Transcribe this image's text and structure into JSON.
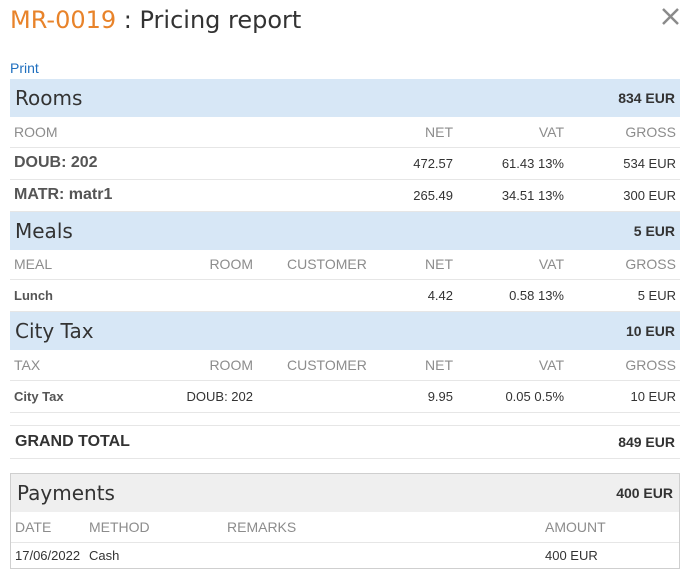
{
  "header": {
    "code": "MR-0019",
    "separator": " : ",
    "title": "Pricing report",
    "close_icon": "close-icon"
  },
  "print_label": "Print",
  "rooms": {
    "title": "Rooms",
    "total": "834 EUR",
    "columns": [
      "ROOM",
      "NET",
      "VAT",
      "GROSS"
    ],
    "rows": [
      {
        "room": "DOUB: 202",
        "net": "472.57",
        "vat": "61.43 13%",
        "gross": "534 EUR"
      },
      {
        "room": "MATR: matr1",
        "net": "265.49",
        "vat": "34.51 13%",
        "gross": "300 EUR"
      }
    ]
  },
  "meals": {
    "title": "Meals",
    "total": "5 EUR",
    "columns": [
      "MEAL",
      "ROOM",
      "CUSTOMER",
      "NET",
      "VAT",
      "GROSS"
    ],
    "rows": [
      {
        "meal": "Lunch",
        "room": "",
        "customer": "",
        "net": "4.42",
        "vat": "0.58 13%",
        "gross": "5 EUR"
      }
    ]
  },
  "city_tax": {
    "title": "City Tax",
    "total": "10 EUR",
    "columns": [
      "TAX",
      "ROOM",
      "CUSTOMER",
      "NET",
      "VAT",
      "GROSS"
    ],
    "rows": [
      {
        "tax": "City Tax",
        "room": "DOUB: 202",
        "customer": "",
        "net": "9.95",
        "vat": "0.05 0.5%",
        "gross": "10 EUR"
      }
    ]
  },
  "grand_total": {
    "label": "GRAND TOTAL",
    "value": "849 EUR"
  },
  "payments": {
    "title": "Payments",
    "total": "400 EUR",
    "columns": [
      "DATE",
      "METHOD",
      "REMARKS",
      "AMOUNT"
    ],
    "rows": [
      {
        "date": "17/06/2022",
        "method": "Cash",
        "remarks": "",
        "amount": "400 EUR"
      }
    ]
  },
  "colors": {
    "accent": "#e8832a",
    "link": "#1f6fbf",
    "section_header": "#d7e7f6",
    "payments_header": "#efefef"
  }
}
